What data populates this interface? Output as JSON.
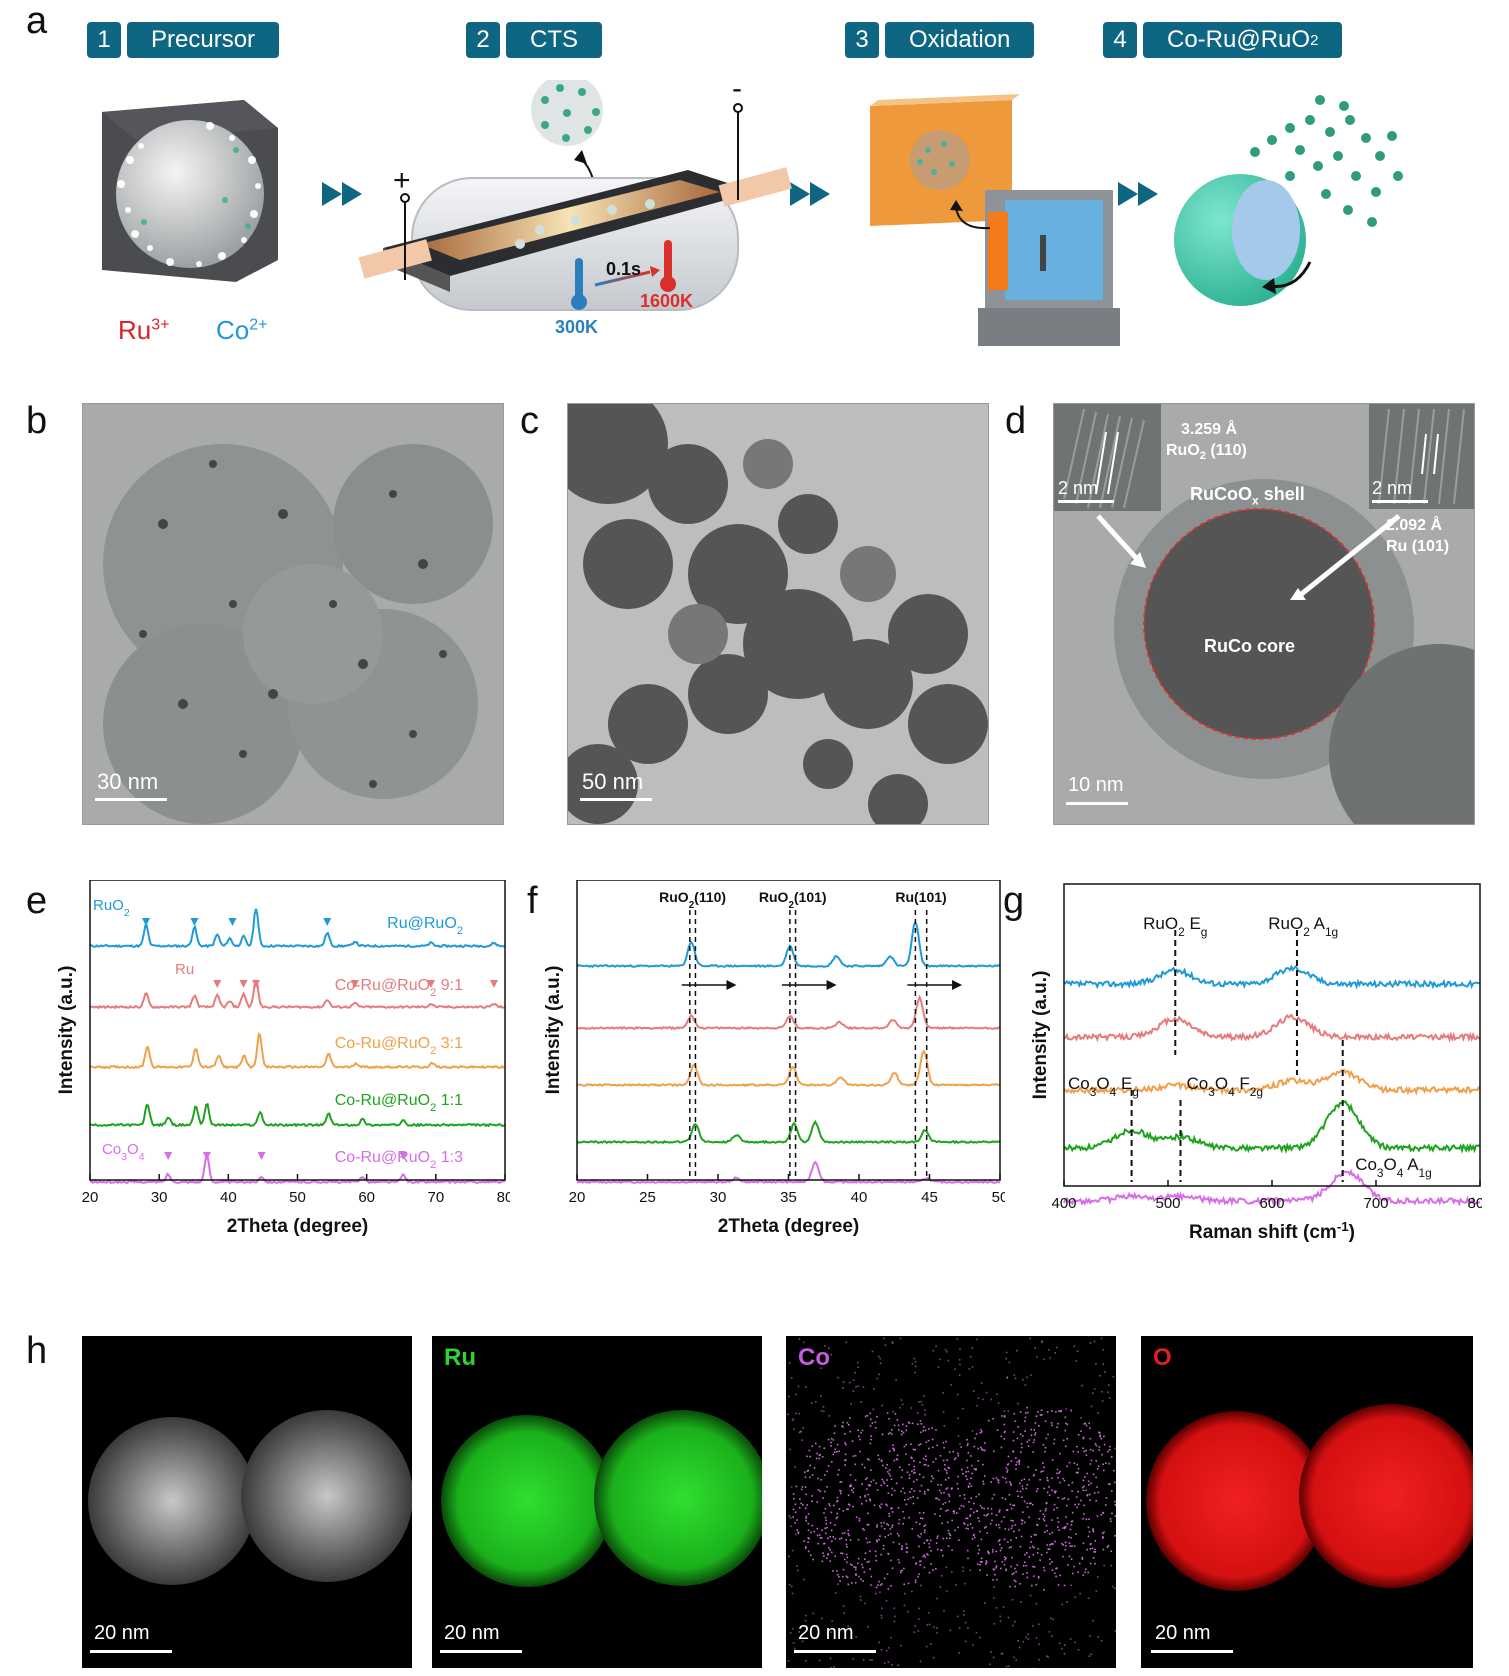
{
  "panel_labels": {
    "a": "a",
    "b": "b",
    "c": "c",
    "d": "d",
    "e": "e",
    "f": "f",
    "g": "g",
    "h": "h"
  },
  "steps": [
    {
      "num": "1",
      "name": "Precursor"
    },
    {
      "num": "2",
      "name": "CTS"
    },
    {
      "num": "3",
      "name": "Oxidation"
    },
    {
      "num": "4",
      "name": "Co-Ru@RuO",
      "name_sub": "2"
    }
  ],
  "ions": {
    "ru": "Ru",
    "ru_sup": "3+",
    "co": "Co",
    "co_sup": "2+"
  },
  "cts": {
    "plus": "+",
    "minus": "-",
    "time": "0.1s",
    "t_low": "300K",
    "t_high": "1600K"
  },
  "tem": {
    "b_scale": "30 nm",
    "c_scale": "50 nm",
    "d_scale": "10 nm",
    "d_inset_scale_left": "2 nm",
    "d_inset_scale_right": "2 nm",
    "d_spacing_left": "3.259 Å",
    "d_plane_left": "RuO",
    "d_plane_left_sub": "2",
    "d_plane_left_hkl": " (110)",
    "d_spacing_right": "2.092 Å",
    "d_plane_right": "Ru (101)",
    "shell": "RuCoO",
    "shell_sub": "x",
    "shell_tail": " shell",
    "core": "RuCo core"
  },
  "colors": {
    "blue": "#1f9ad6",
    "pink": "#e57b7b",
    "orange": "#f0a04b",
    "green": "#1fa31f",
    "violet": "#d66ee6",
    "accent": "#0e6682"
  },
  "chart_data": [
    {
      "type": "line",
      "panel": "e",
      "xlabel": "2Theta (degree)",
      "ylabel": "Intensity (a.u.)",
      "xlim": [
        20,
        80
      ],
      "xticks": [
        20,
        30,
        40,
        50,
        60,
        70,
        80
      ],
      "series": [
        {
          "name": "Ru@RuO2",
          "color": "#1f9ad6",
          "peaks": [
            [
              28.1,
              0.55
            ],
            [
              35.1,
              0.5
            ],
            [
              38.4,
              0.3
            ],
            [
              40.2,
              0.2
            ],
            [
              42.2,
              0.25
            ],
            [
              44.0,
              1.0
            ],
            [
              54.3,
              0.35
            ],
            [
              58.3,
              0.12
            ],
            [
              69.3,
              0.08
            ],
            [
              78.4,
              0.08
            ]
          ]
        },
        {
          "name": "Co-Ru@RuO2 9:1",
          "color": "#e57b7b",
          "peaks": [
            [
              28.1,
              0.35
            ],
            [
              35.1,
              0.3
            ],
            [
              38.4,
              0.3
            ],
            [
              40.2,
              0.15
            ],
            [
              42.2,
              0.35
            ],
            [
              44.0,
              0.7
            ],
            [
              54.3,
              0.2
            ],
            [
              58.3,
              0.1
            ],
            [
              69.3,
              0.08
            ],
            [
              78.4,
              0.08
            ]
          ]
        },
        {
          "name": "Co-Ru@RuO2 3:1",
          "color": "#f0a04b",
          "peaks": [
            [
              28.3,
              0.55
            ],
            [
              35.3,
              0.5
            ],
            [
              38.6,
              0.3
            ],
            [
              42.3,
              0.3
            ],
            [
              44.5,
              0.9
            ],
            [
              54.5,
              0.35
            ],
            [
              58.5,
              0.1
            ],
            [
              69.5,
              0.1
            ]
          ]
        },
        {
          "name": "Co-Ru@RuO2 1:1",
          "color": "#1fa31f",
          "peaks": [
            [
              28.3,
              0.55
            ],
            [
              31.3,
              0.2
            ],
            [
              35.3,
              0.5
            ],
            [
              36.9,
              0.55
            ],
            [
              44.6,
              0.35
            ],
            [
              54.5,
              0.3
            ],
            [
              59.4,
              0.15
            ],
            [
              65.3,
              0.15
            ]
          ]
        },
        {
          "name": "Co-Ru@RuO2 1:3",
          "color": "#d66ee6",
          "peaks": [
            [
              31.3,
              0.2
            ],
            [
              36.9,
              0.7
            ],
            [
              44.8,
              0.15
            ],
            [
              59.4,
              0.15
            ],
            [
              65.3,
              0.2
            ]
          ]
        }
      ],
      "labels": [
        "Ru@RuO",
        "Co-Ru@RuO",
        "Co-Ru@RuO",
        "Co-Ru@RuO",
        "Co-Ru@RuO"
      ],
      "label_subs": [
        "2",
        "2",
        "2",
        "2",
        "2"
      ],
      "label_tails": [
        "",
        " 9:1",
        " 3:1",
        " 1:1",
        " 1:3"
      ],
      "annotations": [
        {
          "text": "RuO",
          "sub": "2"
        },
        {
          "text": "Ru"
        },
        {
          "text": "Co",
          "sub": "3",
          "text2": "O",
          "sub2": "4"
        }
      ],
      "markers": {
        "ruo2": [
          28.1,
          35.1,
          40.6,
          54.3
        ],
        "ru": [
          38.4,
          42.2,
          44.0,
          58.3,
          69.3,
          78.4
        ],
        "co3o4": [
          31.3,
          36.9,
          44.8,
          65.3
        ]
      }
    },
    {
      "type": "line",
      "panel": "f",
      "xlabel": "2Theta (degree)",
      "ylabel": "Intensity (a.u.)",
      "xlim": [
        20,
        50
      ],
      "xticks": [
        20,
        25,
        30,
        35,
        40,
        45,
        50
      ],
      "reference_lines": [
        28.0,
        28.4,
        35.1,
        35.5,
        44.0,
        44.8
      ],
      "annotations": [
        {
          "text": "RuO",
          "sub": "2",
          "tail": "(110)"
        },
        {
          "text": "RuO",
          "sub": "2",
          "tail": "(101)"
        },
        {
          "text": "Ru(101)"
        }
      ],
      "series": [
        {
          "color": "#1f9ad6",
          "peaks": [
            [
              28.1,
              0.6
            ],
            [
              35.1,
              0.5
            ],
            [
              38.4,
              0.25
            ],
            [
              42.2,
              0.25
            ],
            [
              44.0,
              1.1
            ]
          ]
        },
        {
          "color": "#e57b7b",
          "peaks": [
            [
              28.1,
              0.3
            ],
            [
              35.1,
              0.3
            ],
            [
              38.6,
              0.15
            ],
            [
              42.4,
              0.2
            ],
            [
              44.3,
              0.75
            ]
          ]
        },
        {
          "color": "#f0a04b",
          "peaks": [
            [
              28.3,
              0.5
            ],
            [
              35.3,
              0.45
            ],
            [
              38.7,
              0.2
            ],
            [
              42.5,
              0.3
            ],
            [
              44.6,
              0.85
            ]
          ]
        },
        {
          "color": "#1fa31f",
          "peaks": [
            [
              28.4,
              0.45
            ],
            [
              31.3,
              0.18
            ],
            [
              35.4,
              0.45
            ],
            [
              36.9,
              0.5
            ],
            [
              44.7,
              0.3
            ]
          ]
        },
        {
          "color": "#d66ee6",
          "peaks": [
            [
              31.3,
              0.1
            ],
            [
              36.9,
              0.5
            ],
            [
              44.8,
              0.1
            ]
          ]
        }
      ]
    },
    {
      "type": "line",
      "panel": "g",
      "xlabel": "Raman shift (cm",
      "xlabel_sup": "-1",
      "xlabel_tail": ")",
      "ylabel": "Intensity (a.u.)",
      "xlim": [
        400,
        800
      ],
      "xticks": [
        400,
        500,
        600,
        700,
        800
      ],
      "reference_lines": [
        507,
        624,
        465,
        512,
        668
      ],
      "annotations": [
        {
          "text": "RuO",
          "sub": "2",
          "tail": " E",
          "sub2": "g"
        },
        {
          "text": "RuO",
          "sub": "2",
          "tail": " A",
          "sub2": "1g"
        },
        {
          "text": "Co",
          "sub": "3",
          "text2": "O",
          "sub3": "4",
          "tail": " E",
          "sub2": "g"
        },
        {
          "text": "Co",
          "sub": "3",
          "text2": "O",
          "sub3": "4",
          "tail": " F",
          "sub2": "2g"
        },
        {
          "text": "Co",
          "sub": "3",
          "text2": "O",
          "sub3": "4",
          "tail": " A",
          "sub2": "1g"
        }
      ],
      "series": [
        {
          "color": "#1f9ad6",
          "peaks": [
            [
              507,
              0.3
            ],
            [
              620,
              0.35
            ]
          ]
        },
        {
          "color": "#e57b7b",
          "peaks": [
            [
              507,
              0.4
            ],
            [
              620,
              0.45
            ]
          ]
        },
        {
          "color": "#f0a04b",
          "peaks": [
            [
              507,
              0.1
            ],
            [
              620,
              0.2
            ],
            [
              668,
              0.4
            ]
          ]
        },
        {
          "color": "#1fa31f",
          "peaks": [
            [
              465,
              0.4
            ],
            [
              512,
              0.25
            ],
            [
              668,
              1.0
            ]
          ]
        },
        {
          "color": "#d66ee6",
          "peaks": [
            [
              465,
              0.1
            ],
            [
              512,
              0.1
            ],
            [
              672,
              0.65
            ]
          ]
        }
      ]
    }
  ],
  "eds": {
    "haadf_scale": "20 nm",
    "ru_label": "Ru",
    "ru_scale": "20 nm",
    "co_label": "Co",
    "co_scale": "20 nm",
    "o_label": "O",
    "o_scale": "20 nm"
  }
}
